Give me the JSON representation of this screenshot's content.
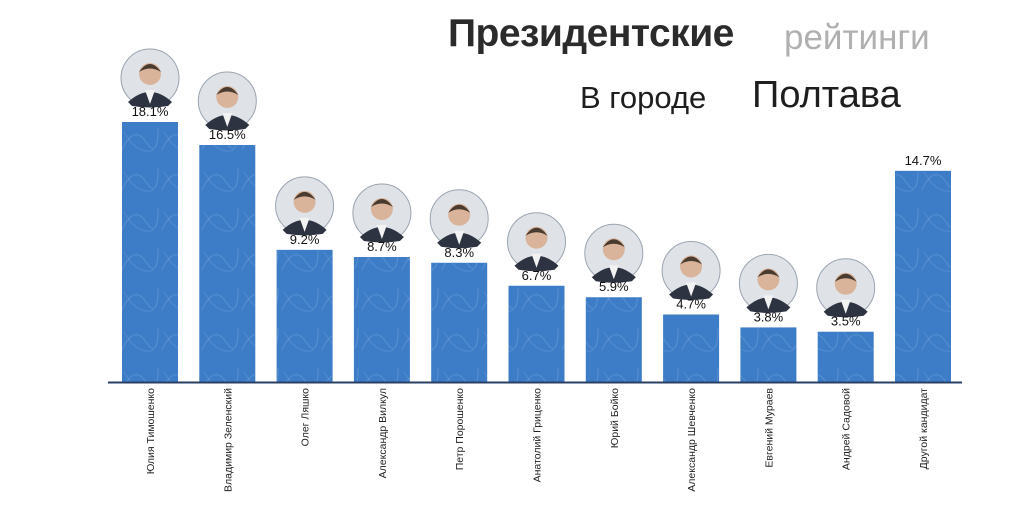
{
  "title": {
    "bold": "Президентские",
    "light": "рейтинги",
    "subtitle_prefix": "В городе",
    "subtitle_city": "Полтава"
  },
  "colors": {
    "bar": "#3d7cc6",
    "bar_texture": "#6fa0d8",
    "axis": "#2a3f66"
  },
  "chart_data": {
    "type": "bar",
    "title": "Президентские рейтинги В городе Полтава",
    "categories": [
      "Юлия Тимошенко",
      "Владимир Зеленский",
      "Олег Ляшко",
      "Александр Вилкул",
      "Петр Порошенко",
      "Анатолий Гриценко",
      "Юрий Бойко",
      "Александр Шевченко",
      "Евгений Мураев",
      "Андрей Садовой",
      "Другой кандидат"
    ],
    "values": [
      18.1,
      16.5,
      9.2,
      8.7,
      8.3,
      6.7,
      5.9,
      4.7,
      3.8,
      3.5,
      14.7
    ],
    "value_labels": [
      "18.1%",
      "16.5%",
      "9.2%",
      "8.7%",
      "8.3%",
      "6.7%",
      "5.9%",
      "4.7%",
      "3.8%",
      "3.5%",
      "14.7%"
    ],
    "photo_icons": [
      "portrait-photo-icon",
      "portrait-photo-icon",
      "portrait-photo-icon",
      "portrait-photo-icon",
      "portrait-photo-icon",
      "portrait-photo-icon",
      "portrait-photo-icon",
      "portrait-photo-icon",
      "portrait-photo-icon",
      "portrait-photo-icon",
      null
    ],
    "ylim": [
      0,
      18.1
    ],
    "grid": false,
    "legend": "none"
  }
}
